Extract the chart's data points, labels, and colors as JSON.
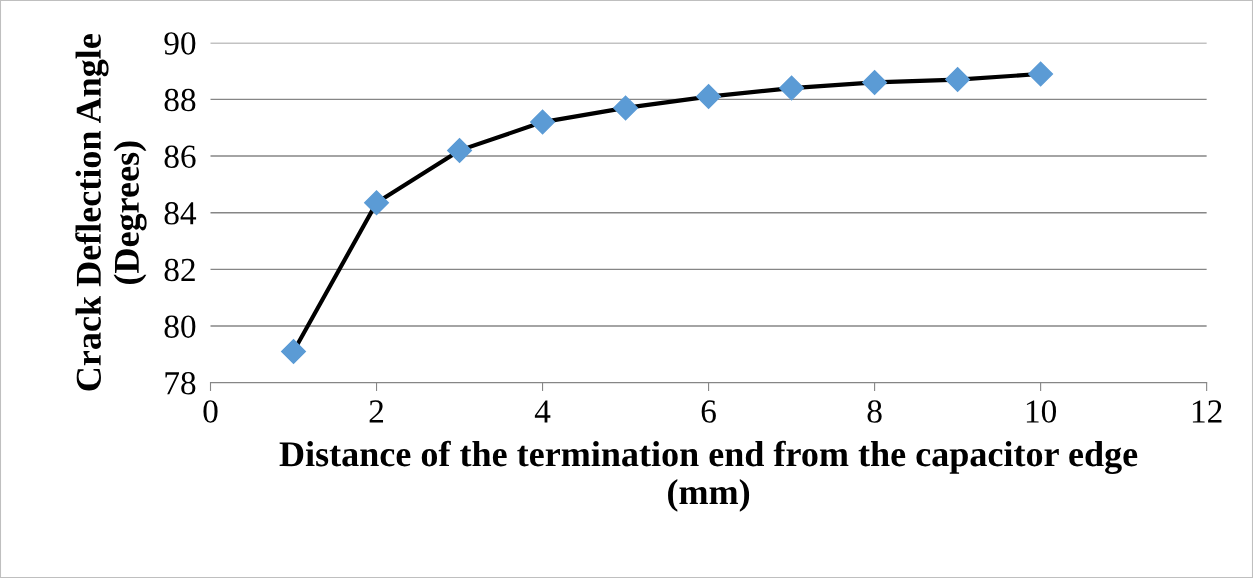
{
  "chart_data": {
    "type": "line",
    "xlabel": "Distance of the termination end from the capacitor edge\n(mm)",
    "ylabel": "Crack Deflection Angle\n(Degrees)",
    "x": [
      1,
      2,
      3,
      4,
      5,
      6,
      7,
      8,
      9,
      10
    ],
    "series": [
      {
        "color": "#5b9bd5",
        "values": [
          79.1,
          84.35,
          86.2,
          87.2,
          87.7,
          88.1,
          88.4,
          88.6,
          88.7,
          88.9
        ]
      }
    ],
    "xlim": [
      0,
      12
    ],
    "xticks": [
      0,
      2,
      4,
      6,
      8,
      10,
      12
    ],
    "ylim": [
      78,
      90
    ],
    "yticks": [
      78,
      80,
      82,
      84,
      86,
      88,
      90
    ],
    "grid": "y",
    "marker": "diamond",
    "line_style": "solid"
  }
}
